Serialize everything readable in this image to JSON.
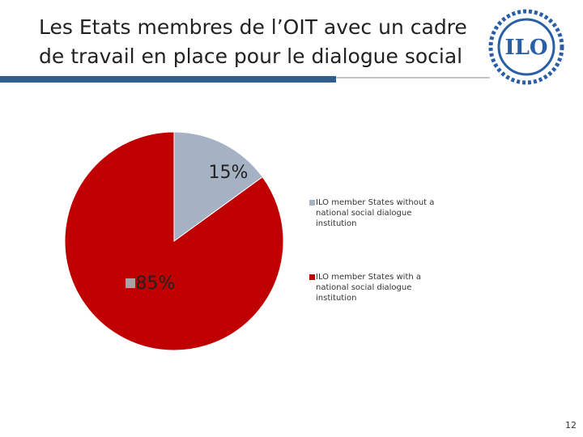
{
  "header": {
    "title": "Les Etats membres de l’OIT avec un cadre de travail en place pour le dialogue social",
    "logo_text": "ILO"
  },
  "chart_data": {
    "type": "pie",
    "categories": [
      "ILO member States without a national social dialogue institution",
      "ILO member States with a national social dialogue institution"
    ],
    "values": [
      15,
      85
    ],
    "value_labels": [
      "15%",
      "85%"
    ],
    "colors": [
      "#a5b2c4",
      "#c00000"
    ]
  },
  "footer": {
    "page_number": "12"
  }
}
